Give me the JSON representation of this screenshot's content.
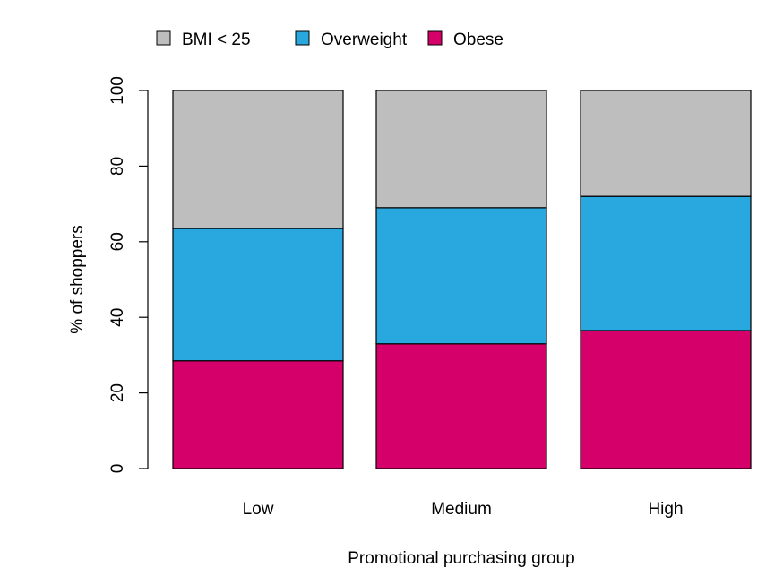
{
  "chart_data": {
    "type": "bar",
    "stacked": true,
    "categories": [
      "Low",
      "Medium",
      "High"
    ],
    "series": [
      {
        "name": "Obese",
        "color": "#d6006a",
        "values": [
          28.5,
          33.0,
          36.5
        ]
      },
      {
        "name": "Overweight",
        "color": "#29a8e0",
        "values": [
          35.0,
          36.0,
          35.5
        ]
      },
      {
        "name": "BMI < 25",
        "color": "#bebebe",
        "values": [
          36.5,
          31.0,
          28.0
        ]
      }
    ],
    "legend_order": [
      "BMI < 25",
      "Overweight",
      "Obese"
    ],
    "legend_position": "top",
    "xlabel": "Promotional purchasing group",
    "ylabel": "% of shoppers",
    "ylim": [
      0,
      100
    ],
    "yticks": [
      "0",
      "20",
      "40",
      "60",
      "80",
      "100"
    ],
    "grid": false
  }
}
